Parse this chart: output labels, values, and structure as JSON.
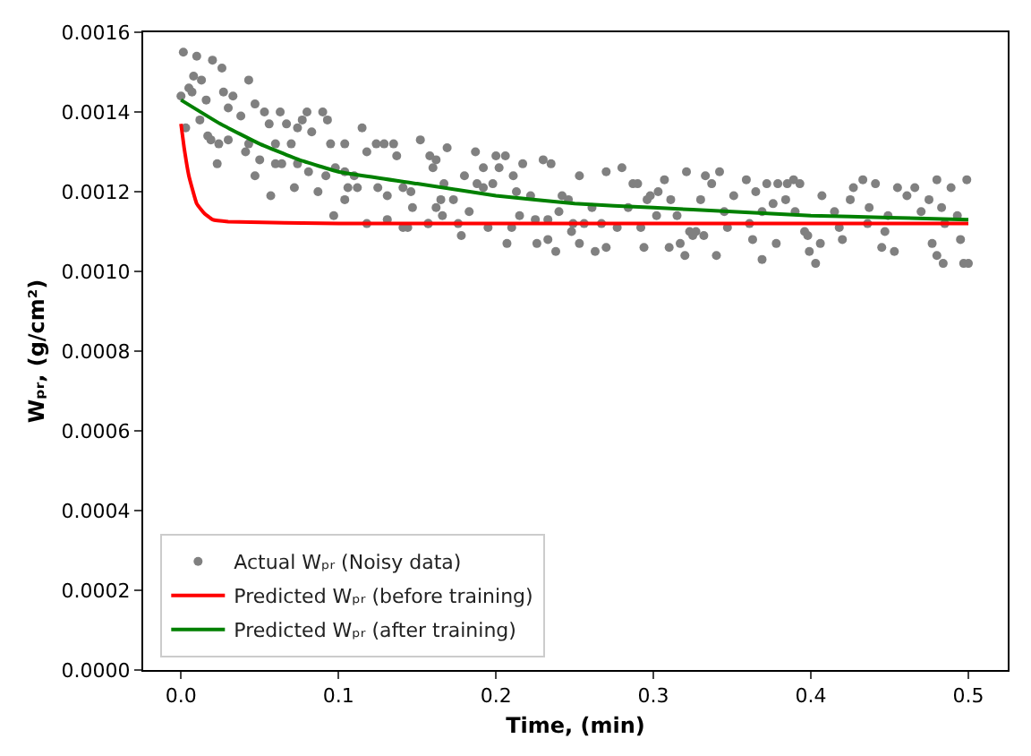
{
  "chart_data": {
    "type": "scatter",
    "xlabel": "Time, (min)",
    "ylabel": "Wₚᵣ, (g/cm²)",
    "xlim": [
      -0.024,
      0.525
    ],
    "ylim": [
      0,
      0.0016
    ],
    "xticks": [
      {
        "value": 0,
        "label": "0.0"
      },
      0.1,
      0.2,
      0.3,
      0.4,
      0.5
    ],
    "yticks": [
      {
        "value": 0,
        "label": "0.0000"
      },
      {
        "value": 0.0002,
        "label": "0.0002"
      },
      {
        "value": 0.0004,
        "label": "0.0004"
      },
      {
        "value": 0.0006,
        "label": "0.0006"
      },
      {
        "value": 0.0008,
        "label": "0.0008"
      },
      {
        "value": 0.001,
        "label": "0.0010"
      },
      {
        "value": 0.0012,
        "label": "0.0012"
      },
      {
        "value": 0.0014,
        "label": "0.0014"
      },
      {
        "value": 0.0016,
        "label": "0.0016"
      }
    ],
    "legend": "bottom left",
    "series": [
      {
        "name": "Actual Wₚᵣ (Noisy data)",
        "color": "#808080",
        "marker": "circle",
        "x": [
          0.0015,
          0.01,
          0.02,
          0.026,
          0.008,
          0.013,
          0.043,
          0.005,
          0.007,
          0.0,
          0.027,
          0.033,
          0.016,
          0.047,
          0.03,
          0.038,
          0.053,
          0.063,
          0.056,
          0.067,
          0.074,
          0.08,
          0.077,
          0.09,
          0.093,
          0.003,
          0.012,
          0.017,
          0.019,
          0.024,
          0.03,
          0.043,
          0.041,
          0.06,
          0.07,
          0.083,
          0.095,
          0.104,
          0.115,
          0.118,
          0.124,
          0.129,
          0.135,
          0.137,
          0.152,
          0.158,
          0.162,
          0.05,
          0.06,
          0.064,
          0.074,
          0.023,
          0.047,
          0.081,
          0.092,
          0.098,
          0.104,
          0.11,
          0.112,
          0.106,
          0.125,
          0.131,
          0.141,
          0.146,
          0.072,
          0.087,
          0.057,
          0.104,
          0.147,
          0.162,
          0.097,
          0.118,
          0.131,
          0.141,
          0.144,
          0.157,
          0.169,
          0.187,
          0.2,
          0.206,
          0.16,
          0.192,
          0.202,
          0.217,
          0.23,
          0.235,
          0.253,
          0.27,
          0.28,
          0.18,
          0.188,
          0.192,
          0.198,
          0.167,
          0.211,
          0.213,
          0.222,
          0.242,
          0.246,
          0.287,
          0.29,
          0.298,
          0.303,
          0.307,
          0.321,
          0.296,
          0.311,
          0.33,
          0.173,
          0.165,
          0.183,
          0.24,
          0.261,
          0.284,
          0.157,
          0.166,
          0.176,
          0.195,
          0.21,
          0.215,
          0.225,
          0.233,
          0.249,
          0.248,
          0.256,
          0.267,
          0.277,
          0.292,
          0.302,
          0.315,
          0.323,
          0.325,
          0.332,
          0.178,
          0.207,
          0.226,
          0.233,
          0.238,
          0.253,
          0.263,
          0.27,
          0.294,
          0.31,
          0.317,
          0.32,
          0.333,
          0.342,
          0.337,
          0.359,
          0.351,
          0.372,
          0.379,
          0.385,
          0.389,
          0.393,
          0.365,
          0.376,
          0.384,
          0.407,
          0.427,
          0.433,
          0.441,
          0.455,
          0.466,
          0.48,
          0.489,
          0.499,
          0.425,
          0.461,
          0.475,
          0.345,
          0.369,
          0.39,
          0.415,
          0.437,
          0.449,
          0.47,
          0.483,
          0.493,
          0.327,
          0.347,
          0.361,
          0.396,
          0.418,
          0.436,
          0.447,
          0.485,
          0.398,
          0.406,
          0.42,
          0.363,
          0.378,
          0.445,
          0.453,
          0.477,
          0.495,
          0.34,
          0.369,
          0.399,
          0.403,
          0.48,
          0.484,
          0.497,
          0.5
        ],
        "values": [
          0.00155,
          0.00154,
          0.00153,
          0.00151,
          0.00149,
          0.00148,
          0.00148,
          0.00146,
          0.00145,
          0.00144,
          0.00145,
          0.00144,
          0.00143,
          0.00142,
          0.00141,
          0.00139,
          0.0014,
          0.0014,
          0.00137,
          0.00137,
          0.00136,
          0.0014,
          0.00138,
          0.0014,
          0.00138,
          0.00136,
          0.00138,
          0.00134,
          0.00133,
          0.00132,
          0.00133,
          0.00132,
          0.0013,
          0.00132,
          0.00132,
          0.00135,
          0.00132,
          0.00132,
          0.00136,
          0.0013,
          0.00132,
          0.00132,
          0.00132,
          0.00129,
          0.00133,
          0.00129,
          0.00128,
          0.00128,
          0.00127,
          0.00127,
          0.00127,
          0.00127,
          0.00124,
          0.00125,
          0.00124,
          0.00126,
          0.00125,
          0.00124,
          0.00121,
          0.00121,
          0.00121,
          0.00119,
          0.00121,
          0.0012,
          0.00121,
          0.0012,
          0.00119,
          0.00118,
          0.00116,
          0.00116,
          0.00114,
          0.00112,
          0.00113,
          0.00111,
          0.00111,
          0.00112,
          0.00131,
          0.0013,
          0.00129,
          0.00129,
          0.00126,
          0.00126,
          0.00126,
          0.00127,
          0.00128,
          0.00127,
          0.00124,
          0.00125,
          0.00126,
          0.00124,
          0.00122,
          0.00121,
          0.00122,
          0.00122,
          0.00124,
          0.0012,
          0.00119,
          0.00119,
          0.00118,
          0.00122,
          0.00122,
          0.00119,
          0.0012,
          0.00123,
          0.00125,
          0.00118,
          0.00118,
          0.00118,
          0.00118,
          0.00118,
          0.00115,
          0.00115,
          0.00116,
          0.00116,
          0.00112,
          0.00114,
          0.00112,
          0.00111,
          0.00111,
          0.00114,
          0.00113,
          0.00113,
          0.00112,
          0.0011,
          0.00112,
          0.00112,
          0.00111,
          0.00111,
          0.00114,
          0.00114,
          0.0011,
          0.00109,
          0.00109,
          0.00109,
          0.00107,
          0.00107,
          0.00108,
          0.00105,
          0.00107,
          0.00105,
          0.00106,
          0.00106,
          0.00106,
          0.00107,
          0.00104,
          0.00124,
          0.00125,
          0.00122,
          0.00123,
          0.00119,
          0.00122,
          0.00122,
          0.00122,
          0.00123,
          0.00122,
          0.0012,
          0.00117,
          0.00118,
          0.00119,
          0.00121,
          0.00123,
          0.00122,
          0.00121,
          0.00121,
          0.00123,
          0.00121,
          0.00123,
          0.00118,
          0.00119,
          0.00118,
          0.00115,
          0.00115,
          0.00115,
          0.00115,
          0.00116,
          0.00114,
          0.00115,
          0.00116,
          0.00114,
          0.0011,
          0.00111,
          0.00112,
          0.0011,
          0.00111,
          0.00112,
          0.0011,
          0.00112,
          0.00109,
          0.00107,
          0.00108,
          0.00108,
          0.00107,
          0.00106,
          0.00105,
          0.00107,
          0.00108,
          0.00104,
          0.00103,
          0.00105,
          0.00102,
          0.00104,
          0.00102,
          0.00102,
          0.00102
        ]
      },
      {
        "type": "line",
        "name": "Predicted Wₚᵣ (before training)",
        "color": "#ff0000",
        "marker": "none",
        "x": [
          0,
          0.002,
          0.005,
          0.01,
          0.015,
          0.02,
          0.03,
          0.1,
          0.5
        ],
        "values": [
          0.00137,
          0.00131,
          0.00124,
          0.00117,
          0.001145,
          0.00113,
          0.001125,
          0.00112,
          0.00112
        ]
      },
      {
        "type": "line",
        "name": "Predicted Wₚᵣ (after training)",
        "color": "#008000",
        "marker": "none",
        "x": [
          0,
          0.025,
          0.05,
          0.075,
          0.1,
          0.15,
          0.2,
          0.25,
          0.3,
          0.35,
          0.4,
          0.45,
          0.5
        ],
        "values": [
          0.00143,
          0.00137,
          0.00132,
          0.00128,
          0.00125,
          0.00122,
          0.00119,
          0.00117,
          0.00116,
          0.00115,
          0.00114,
          0.001135,
          0.00113
        ]
      }
    ]
  }
}
